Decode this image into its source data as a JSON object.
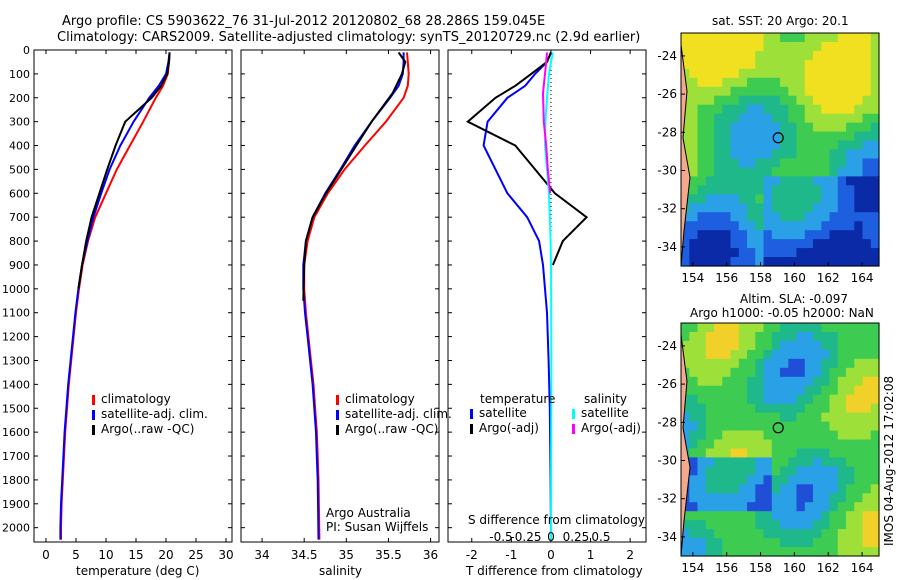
{
  "header": {
    "line1": "Argo profile: CS 5903622_76 31-Jul-2012 20120802_68 28.286S 159.045E",
    "line2": "Climatology: CARS2009. Satellite-adjusted climatology: synTS_20120729.nc (2.9d earlier)"
  },
  "colors": {
    "climatology": "#ff0000",
    "satellite": "#0000ff",
    "argo": "#000000",
    "sal_satellite": "#00ffff",
    "sal_argo": "#ff00ff"
  },
  "depth_ticks": [
    "0",
    "100",
    "200",
    "300",
    "400",
    "500",
    "600",
    "700",
    "800",
    "900",
    "1000",
    "1100",
    "1200",
    "1300",
    "1400",
    "1500",
    "1600",
    "1700",
    "1800",
    "1900",
    "2000"
  ],
  "chart_data": [
    {
      "type": "line",
      "title": "",
      "xlabel": "temperature (deg C)",
      "ylabel": "",
      "xlim": [
        -2,
        31
      ],
      "ylim": [
        2060,
        0
      ],
      "xticks": [
        "0",
        "5",
        "10",
        "15",
        "20",
        "25",
        "30"
      ],
      "legend": [
        "climatology",
        "satellite-adj. clim.",
        "Argo(..raw -QC)"
      ],
      "series": [
        {
          "name": "climatology",
          "x": [
            20.6,
            20.5,
            20.3,
            19.5,
            18.3,
            16.2,
            14,
            11.8,
            10,
            8.2,
            7,
            6.1,
            5.5,
            5,
            4.6,
            4.2,
            3.8,
            3.5,
            3.2,
            3,
            2.8,
            2.6,
            2.5,
            2.5
          ],
          "y": [
            10,
            50,
            100,
            150,
            200,
            300,
            400,
            500,
            600,
            700,
            800,
            900,
            1000,
            1100,
            1200,
            1300,
            1400,
            1500,
            1600,
            1700,
            1800,
            1900,
            2000,
            2050
          ]
        },
        {
          "name": "satellite-adj. clim.",
          "x": [
            20.6,
            20.4,
            20,
            18.8,
            17.2,
            14.6,
            12.4,
            10.6,
            9.2,
            7.9,
            6.9,
            6,
            5.4,
            4.9,
            4.5,
            4.1,
            3.7,
            3.4,
            3.1,
            2.9,
            2.7,
            2.5,
            2.4,
            2.4
          ],
          "y": [
            10,
            50,
            100,
            150,
            200,
            300,
            400,
            500,
            600,
            700,
            800,
            900,
            1000,
            1100,
            1200,
            1300,
            1400,
            1500,
            1600,
            1700,
            1800,
            1900,
            2000,
            2050
          ]
        },
        {
          "name": "Argo(..raw -QC)",
          "x": [
            20.6,
            20.5,
            20.2,
            19.2,
            17.6,
            13.2,
            11.6,
            10.2,
            8.9,
            7.6,
            6.7,
            6,
            5.4
          ],
          "y": [
            10,
            50,
            100,
            150,
            200,
            300,
            400,
            500,
            600,
            700,
            800,
            900,
            1000
          ]
        }
      ]
    },
    {
      "type": "line",
      "title": "",
      "xlabel": "salinity",
      "ylabel": "",
      "xlim": [
        33.75,
        36.1
      ],
      "ylim": [
        2060,
        0
      ],
      "xticks": [
        "34",
        "34.5",
        "35",
        "35.5",
        "36"
      ],
      "legend": [
        "climatology",
        "satellite-adj. clim.",
        "Argo(..raw -QC)"
      ],
      "annotation": [
        "Argo Australia",
        "PI: Susan Wijffels"
      ],
      "series": [
        {
          "name": "climatology",
          "x": [
            35.72,
            35.73,
            35.74,
            35.73,
            35.68,
            35.47,
            35.22,
            34.98,
            34.78,
            34.62,
            34.54,
            34.5,
            34.5,
            34.52,
            34.55,
            34.58,
            34.61,
            34.63,
            34.65,
            34.66,
            34.67,
            34.68
          ],
          "y": [
            10,
            50,
            100,
            150,
            200,
            300,
            400,
            500,
            600,
            700,
            800,
            900,
            1000,
            1100,
            1200,
            1300,
            1400,
            1500,
            1600,
            1700,
            1800,
            2050
          ]
        },
        {
          "name": "satellite-adj. clim.",
          "x": [
            35.68,
            35.68,
            35.67,
            35.62,
            35.52,
            35.3,
            35.1,
            34.93,
            34.75,
            34.6,
            34.52,
            34.49,
            34.49,
            34.51,
            34.54,
            34.57,
            34.6,
            34.62,
            34.64,
            34.65,
            34.66,
            34.67
          ],
          "y": [
            10,
            50,
            100,
            150,
            200,
            300,
            400,
            500,
            600,
            700,
            800,
            900,
            1000,
            1100,
            1200,
            1300,
            1400,
            1500,
            1600,
            1700,
            1800,
            2050
          ]
        },
        {
          "name": "Argo(..raw -QC)",
          "x": [
            35.62,
            35.7,
            35.66,
            35.55,
            35.3,
            35.12,
            34.94,
            34.76,
            34.6,
            34.52,
            34.5,
            34.49
          ],
          "y": [
            10,
            50,
            100,
            180,
            300,
            400,
            500,
            600,
            700,
            800,
            900,
            1050
          ]
        }
      ]
    },
    {
      "type": "line",
      "title": "",
      "xlabel": "T difference from climatology",
      "ylabel": "",
      "top_label": "S difference from climatology",
      "xlim": [
        -2.6,
        2.4
      ],
      "ylim": [
        2060,
        0
      ],
      "xticks": [
        "-2",
        "-1",
        "0",
        "1",
        "2"
      ],
      "inner_ticks": [
        "-0.5",
        "-0.25",
        "0",
        "0.25",
        "0.5"
      ],
      "legend": [
        "temperature",
        "satellite",
        "Argo(-adj)",
        "salinity",
        "satellite",
        "Argo(-adj)"
      ],
      "series": [
        {
          "name": "temperature satellite",
          "x": [
            0,
            -0.1,
            -0.4,
            -0.65,
            -1.1,
            -1.6,
            -1.7,
            -1.4,
            -1.1,
            -0.6,
            -0.3,
            -0.2,
            -0.15,
            -0.1,
            -0.06,
            -0.03,
            -0.01,
            0
          ],
          "y": [
            10,
            50,
            100,
            150,
            200,
            300,
            400,
            500,
            600,
            700,
            800,
            900,
            1000,
            1100,
            1300,
            1500,
            1800,
            2050
          ]
        },
        {
          "name": "temperature Argo(-adj)",
          "x": [
            0,
            -0.1,
            -0.5,
            -0.9,
            -1.4,
            -2.1,
            -0.9,
            -0.4,
            0.1,
            0.9,
            0.3,
            0.05
          ],
          "y": [
            10,
            50,
            100,
            150,
            200,
            300,
            400,
            500,
            600,
            700,
            800,
            900
          ]
        },
        {
          "name": "salinity satellite",
          "x": [
            0.05,
            0,
            -0.05,
            -0.1,
            -0.14,
            -0.15,
            -0.1,
            -0.05,
            -0.03,
            -0.01,
            0,
            0.01,
            0
          ],
          "y": [
            10,
            50,
            100,
            200,
            300,
            400,
            500,
            600,
            700,
            800,
            900,
            1300,
            2050
          ]
        },
        {
          "name": "salinity Argo(-adj)",
          "x": [
            -0.1,
            -0.12,
            -0.15,
            -0.2,
            -0.18,
            -0.12,
            -0.08,
            -0.02
          ],
          "y": [
            10,
            50,
            100,
            180,
            300,
            400,
            500,
            600
          ]
        }
      ]
    },
    {
      "type": "heatmap",
      "title": "sat. SST: 20 Argo: 20.1",
      "xticks": [
        "154",
        "156",
        "158",
        "160",
        "162",
        "164"
      ],
      "yticks": [
        "-24",
        "-26",
        "-28",
        "-30",
        "-32",
        "-34"
      ],
      "xlim": [
        153.3,
        165
      ],
      "ylim": [
        -35,
        -22.8
      ],
      "marker": {
        "lon": 159.045,
        "lat": -28.286
      }
    },
    {
      "type": "heatmap",
      "title": "Altim. SLA: -0.097",
      "subtitle": "Argo h1000: -0.05 h2000: NaN",
      "xticks": [
        "154",
        "156",
        "158",
        "160",
        "162",
        "164"
      ],
      "yticks": [
        "-24",
        "-26",
        "-28",
        "-30",
        "-32",
        "-34"
      ],
      "xlim": [
        153.3,
        165
      ],
      "ylim": [
        -35,
        -22.8
      ],
      "marker": {
        "lon": 159.045,
        "lat": -28.286
      }
    }
  ],
  "watermark": "IMOS 04-Aug-2012 17:02:08"
}
